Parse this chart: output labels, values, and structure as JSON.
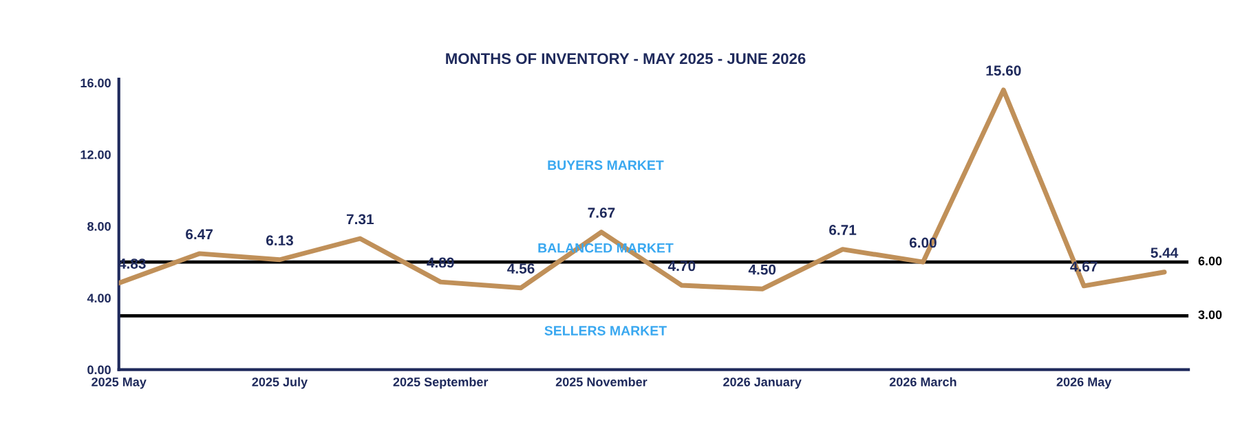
{
  "chart_data": {
    "type": "line",
    "title": "MONTHS OF INVENTORY - MAY 2025 - JUNE 2026",
    "categories": [
      "2025 May",
      null,
      "2025 July",
      null,
      "2025 September",
      null,
      "2025 November",
      null,
      "2026 January",
      null,
      "2026 March",
      null,
      "2026 May",
      null
    ],
    "series": [
      {
        "color": "#c09059",
        "values": [
          4.83,
          6.47,
          6.13,
          7.31,
          4.89,
          4.56,
          7.67,
          4.7,
          4.5,
          6.71,
          6.0,
          15.6,
          4.67,
          5.44
        ],
        "value_labels": [
          "4.83",
          "6.47",
          "6.13",
          "7.31",
          "4.89",
          "4.56",
          "7.67",
          "4.70",
          "4.50",
          "6.71",
          "6.00",
          "15.60",
          "4.67",
          "5.44"
        ]
      }
    ],
    "ylim": [
      0,
      16.2
    ],
    "yticks": [
      {
        "value": 0,
        "label": "0.00"
      },
      {
        "value": 4,
        "label": "4.00"
      },
      {
        "value": 8,
        "label": "8.00"
      },
      {
        "value": 12,
        "label": "12.00"
      },
      {
        "value": 16,
        "label": "16.00"
      }
    ],
    "ref_lines": [
      {
        "axis": "y",
        "value": 6,
        "label": "6.00",
        "color": "#000000"
      },
      {
        "axis": "y",
        "value": 3,
        "label": "3.00",
        "color": "#000000"
      }
    ],
    "annotations": [
      "BUYERS MARKET",
      "BALANCED MARKET",
      "SELLERS MARKET"
    ],
    "grid": false,
    "legend": false,
    "marker": "none",
    "line_style": "solid"
  }
}
